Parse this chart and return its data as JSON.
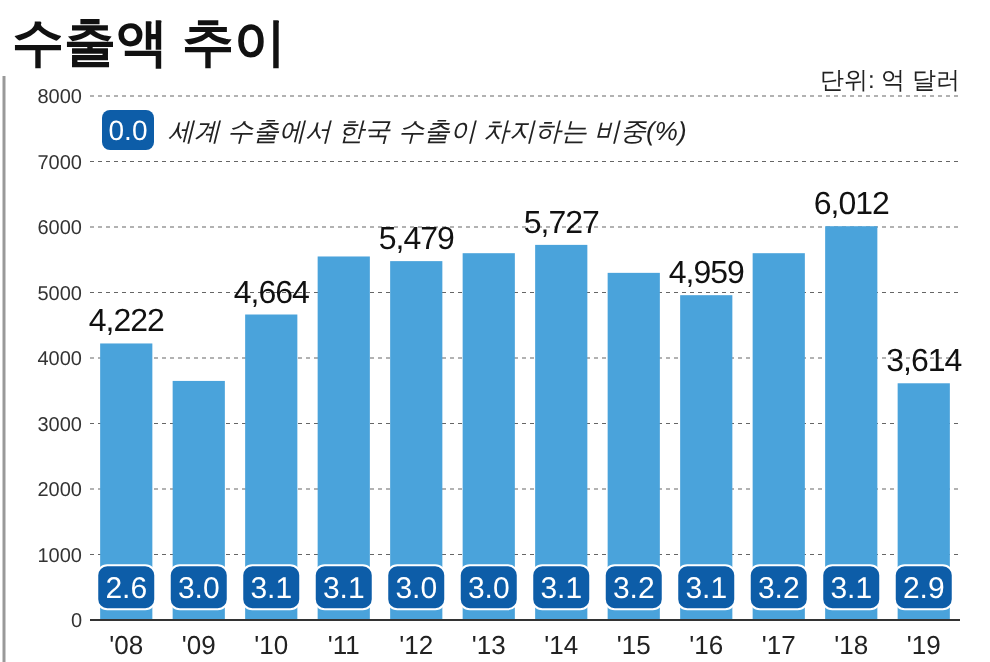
{
  "chart_data": {
    "type": "bar",
    "title": "수출액 추이",
    "subtitle": "단위: 억 달러",
    "categories": [
      "'08",
      "'09",
      "'10",
      "'11",
      "'12",
      "'13",
      "'14",
      "'15",
      "'16",
      "'17",
      "'18",
      "'19"
    ],
    "values": [
      4222,
      3650,
      4664,
      5550,
      5479,
      5600,
      5727,
      5300,
      4959,
      5600,
      6012,
      3614
    ],
    "value_labels": [
      "4,222",
      null,
      "4,664",
      null,
      "5,479",
      null,
      "5,727",
      null,
      "4,959",
      null,
      "6,012",
      "3,614"
    ],
    "color": "#4aa3db",
    "ylim": [
      0,
      8000
    ],
    "yticks": [
      0,
      1000,
      2000,
      3000,
      4000,
      5000,
      6000,
      7000,
      8000
    ],
    "grid": "y",
    "annotations": [
      "0.0",
      "세계 수출에서 한국 수출이 차지하는 비중(%)",
      {
        "text": "2.6",
        "x": "'08",
        "y": 500
      },
      {
        "text": "3.0",
        "x": "'09",
        "y": 500
      },
      {
        "text": "3.1",
        "x": "'10",
        "y": 500
      },
      {
        "text": "3.1",
        "x": "'11",
        "y": 500
      },
      {
        "text": "3.0",
        "x": "'12",
        "y": 500
      },
      {
        "text": "3.0",
        "x": "'13",
        "y": 500
      },
      {
        "text": "3.1",
        "x": "'14",
        "y": 500
      },
      {
        "text": "3.2",
        "x": "'15",
        "y": 500
      },
      {
        "text": "3.1",
        "x": "'16",
        "y": 500
      },
      {
        "text": "3.2",
        "x": "'17",
        "y": 500
      },
      {
        "text": "3.1",
        "x": "'18",
        "y": 500
      },
      {
        "text": "2.9",
        "x": "'19",
        "y": 500
      }
    ]
  }
}
